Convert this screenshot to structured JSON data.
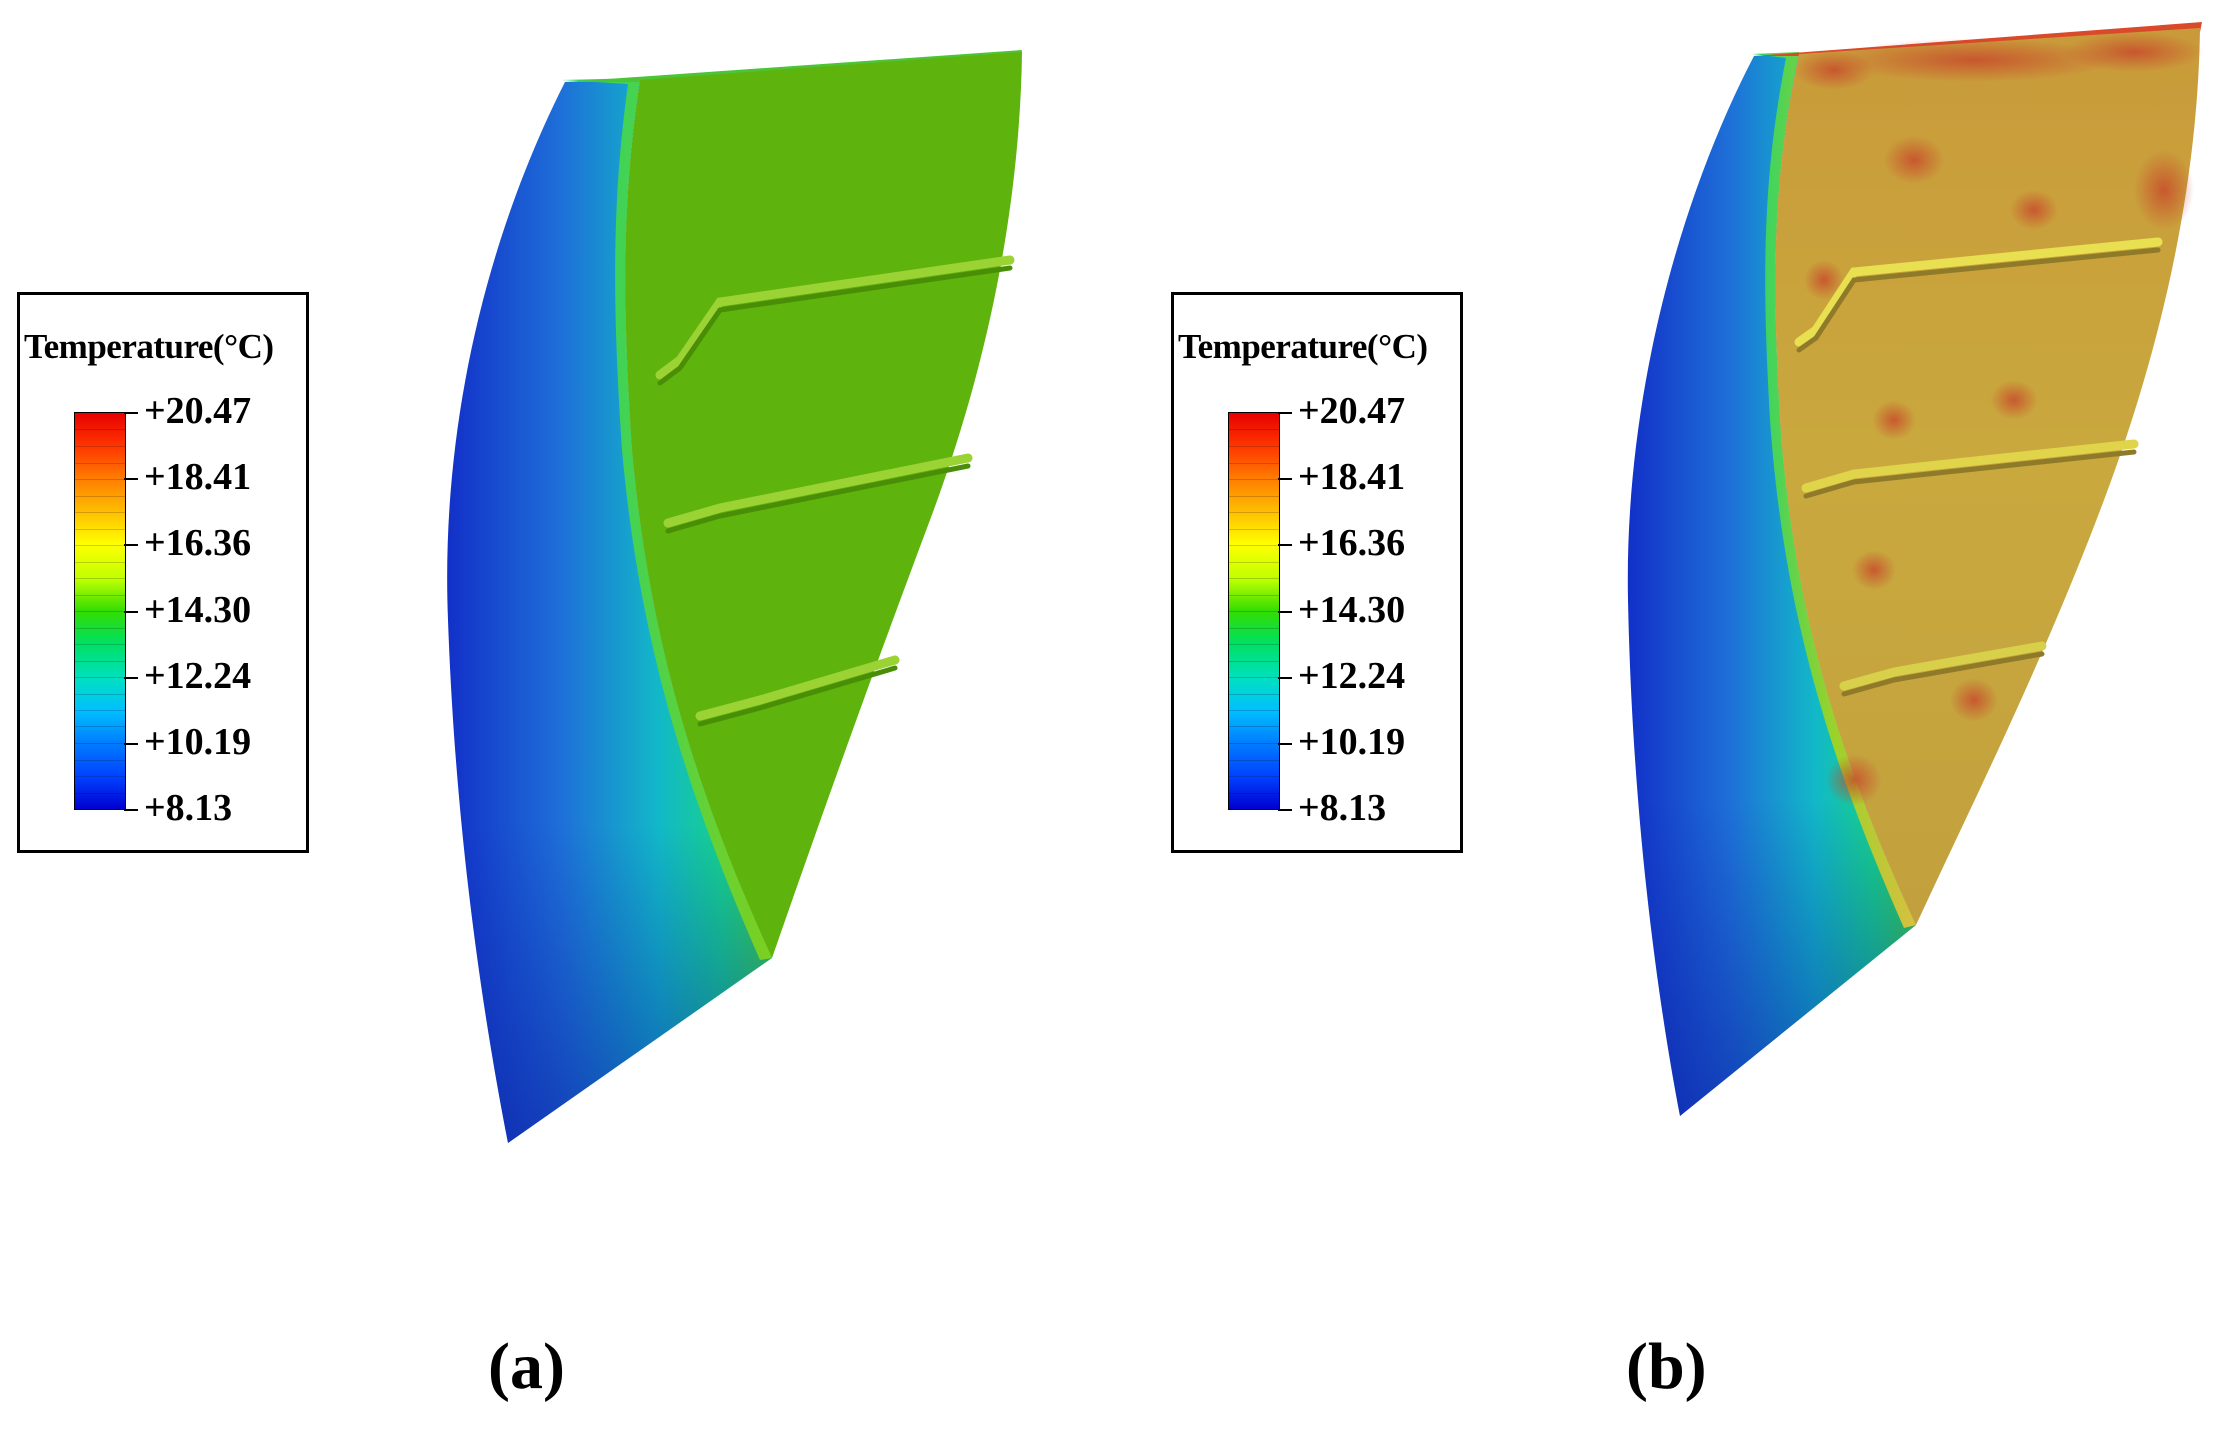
{
  "legend": {
    "title": "Temperature(°C)",
    "min": 8.13,
    "max": 20.47,
    "ticks": [
      "+20.47",
      "+18.41",
      "+16.36",
      "+14.30",
      "+12.24",
      "+10.19",
      "+8.13"
    ],
    "colors": [
      "#e60000",
      "#ff8000",
      "#ffff00",
      "#33dd00",
      "#00e0c0",
      "#0080ff",
      "#0000d0"
    ]
  },
  "panels": [
    {
      "label": "(a)",
      "inner_face_color": "#5eb30c",
      "leading_edge_color": "#1b4fd0"
    },
    {
      "label": "(b)",
      "inner_face_color": "#c9a43d",
      "leading_edge_color": "#1b4fd0"
    }
  ]
}
